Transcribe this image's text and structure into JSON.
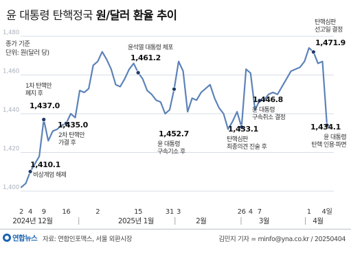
{
  "title": {
    "normal": "윤 대통령 탄핵정국",
    "bold": "원/달러 환율 추이"
  },
  "footer": {
    "logo_text": "연합뉴스",
    "source": "자료: 연합인포맥스, 서울 외환시장",
    "credit": "김민지 기자 = minfo@yna.co.kr / 20250404"
  },
  "chart_data": {
    "type": "line",
    "unit_label": [
      "종가 기준",
      "단위: 원(달러 당)"
    ],
    "ylim": [
      1400,
      1480
    ],
    "yticks": [
      1400,
      1420,
      1440,
      1460,
      1480
    ],
    "ytick_labels": [
      "1,400",
      "1,420",
      "1,440",
      "1,460",
      "1,480"
    ],
    "grid": true,
    "series_color": "#5b82b8",
    "marker_color": "#1f3b66",
    "values": [
      1402.0,
      1404.0,
      1410.1,
      1414.0,
      1418.0,
      1437.0,
      1426.0,
      1431.0,
      1432.0,
      1434.0,
      1435.0,
      1440.0,
      1438.0,
      1452.0,
      1451.0,
      1453.0,
      1465.0,
      1467.0,
      1472.0,
      1468.0,
      1463.0,
      1455.0,
      1454.0,
      1458.0,
      1463.0,
      1466.0,
      1461.2,
      1458.0,
      1452.0,
      1450.0,
      1447.0,
      1446.0,
      1440.0,
      1442.0,
      1452.7,
      1467.0,
      1462.0,
      1441.0,
      1448.0,
      1447.0,
      1451.0,
      1453.0,
      1455.0,
      1448.0,
      1443.0,
      1440.0,
      1432.0,
      1436.0,
      1441.0,
      1433.1,
      1463.0,
      1461.0,
      1442.0,
      1446.8,
      1447.0,
      1450.0,
      1451.0,
      1450.0,
      1454.0,
      1458.0,
      1462.0,
      1463.0,
      1464.0,
      1467.0,
      1474.0,
      1471.9,
      1466.0,
      1467.0,
      1434.1
    ],
    "x_ticks": [
      {
        "index": 0,
        "label": "2"
      },
      {
        "index": 2,
        "label": "4"
      },
      {
        "index": 5,
        "label": "9"
      },
      {
        "index": 10,
        "label": "16"
      },
      {
        "index": 17,
        "label": "2"
      },
      {
        "index": 26,
        "label": "15"
      },
      {
        "index": 33,
        "label": "31"
      },
      {
        "index": 35,
        "label": "3"
      },
      {
        "index": 49,
        "label": "26"
      },
      {
        "index": 51,
        "label": "4"
      },
      {
        "index": 53,
        "label": "7"
      },
      {
        "index": 64,
        "label": "1"
      },
      {
        "index": 68,
        "label": "4일"
      }
    ],
    "month_labels": [
      {
        "index": 2.5,
        "label": "2024년 12월"
      },
      {
        "index": 25.5,
        "label": "2025년 1월"
      },
      {
        "index": 40,
        "label": "2월"
      },
      {
        "index": 54,
        "label": "3월"
      },
      {
        "index": 66,
        "label": "4월"
      }
    ],
    "month_separators": [
      12.8,
      34.2,
      48.9,
      63.2
    ],
    "annotations": [
      {
        "index": 2,
        "value_label": "1,410.1",
        "text": [
          "비상계엄 해제"
        ]
      },
      {
        "index": 5,
        "value_label": "1,437.0",
        "text": [
          "1차 탄핵안",
          "폐지 후"
        ]
      },
      {
        "index": 10,
        "value_label": "1,435.0",
        "text": [
          "2차 탄핵안",
          "가결 후"
        ]
      },
      {
        "index": 26,
        "value_label": "1,461.2",
        "text": [
          "윤석열 대통령 체포"
        ]
      },
      {
        "index": 34,
        "value_label": "1,452.7",
        "text": [
          "윤 대통령",
          "구속기소 후"
        ]
      },
      {
        "index": 49,
        "value_label": "1,433.1",
        "text": [
          "탄핵심판",
          "최종의견 진술 후"
        ]
      },
      {
        "index": 53,
        "value_label": "1,446.8",
        "text": [
          "윤 대통령",
          "구속취소 결정"
        ]
      },
      {
        "index": 65,
        "value_label": "1,471.9",
        "text": [
          "탄핵심판",
          "선고일 결정"
        ]
      },
      {
        "index": 68,
        "value_label": "1,434.1",
        "text": [
          "윤 대통령",
          "탄핵 인용·파면"
        ]
      }
    ]
  }
}
